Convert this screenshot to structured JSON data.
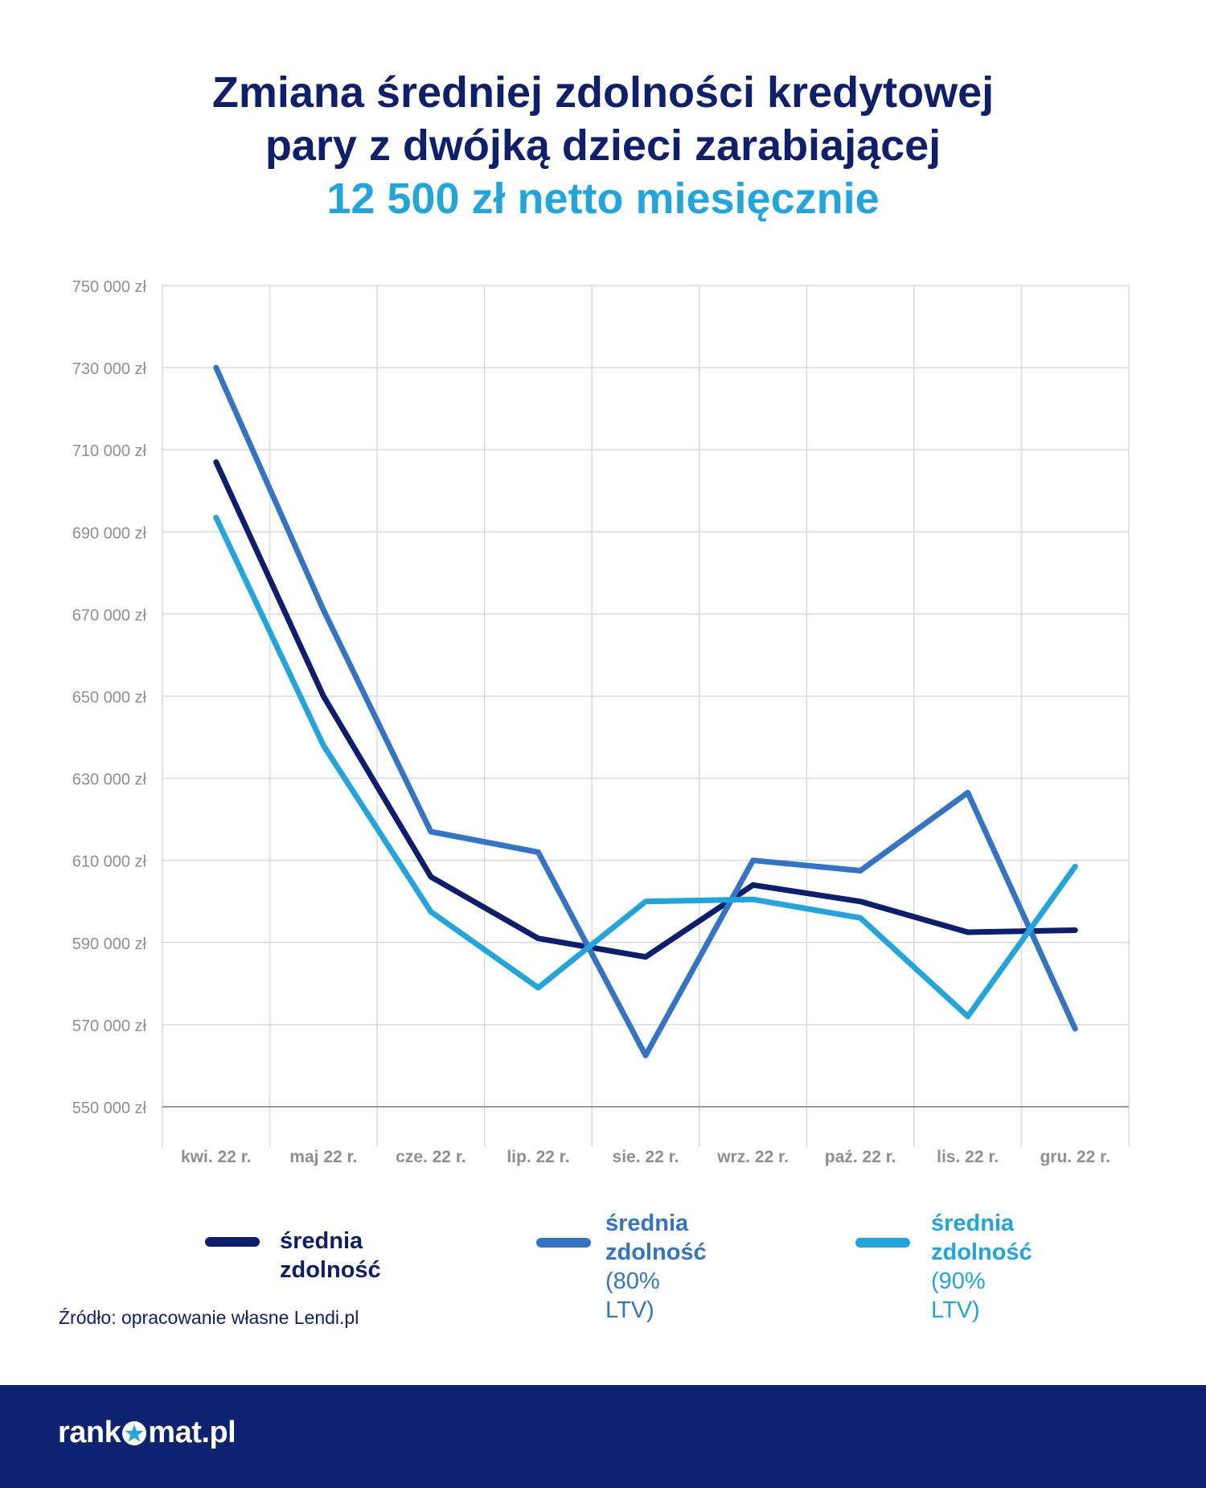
{
  "title": {
    "line1": "Zmiana średniej zdolności kredytowej",
    "line2": "pary z dwójką dzieci zarabiającej",
    "line3": "12 500 zł netto miesięcznie"
  },
  "colors": {
    "title_dark": "#0d1f6d",
    "title_accent": "#22a4dd",
    "footer_bg": "#0e2272",
    "grid": "#d9d9d9",
    "axis": "#9a9a9a",
    "tick_text": "#8f8f8f",
    "source_text": "#0d1f6d"
  },
  "chart_data": {
    "type": "line",
    "categories": [
      "kwi. 22 r.",
      "maj 22 r.",
      "cze. 22  r.",
      "lip. 22 r.",
      "sie. 22 r.",
      "wrz. 22 r.",
      "paź. 22 r.",
      "lis. 22 r.",
      "gru. 22 r."
    ],
    "y_ticks": [
      550000,
      570000,
      590000,
      610000,
      630000,
      650000,
      670000,
      690000,
      710000,
      730000,
      750000
    ],
    "y_tick_labels": [
      "550 000 zł",
      "570 000 zł",
      "590 000 zł",
      "610 000 zł",
      "630 000 zł",
      "650 000 zł",
      "670 000 zł",
      "690 000 zł",
      "710 000 zł",
      "730 000 zł",
      "750 000 zł"
    ],
    "ylim": [
      550000,
      750000
    ],
    "grid": true,
    "legend_position": "bottom",
    "series": [
      {
        "name": "średnia zdolność",
        "name_extra": "",
        "color": "#0e1e6f",
        "values": [
          707000,
          650000,
          606000,
          591000,
          586500,
          604000,
          600000,
          592500,
          593000
        ]
      },
      {
        "name": "średnia zdolność",
        "name_extra": "(80% LTV)",
        "color": "#3474c5",
        "values": [
          730000,
          671000,
          617000,
          612000,
          562500,
          610000,
          607500,
          626500,
          569000
        ]
      },
      {
        "name": "średnia zdolność",
        "name_extra": "(90% LTV)",
        "color": "#22a4dd",
        "values": [
          693500,
          638000,
          597500,
          579000,
          600000,
          600500,
          596000,
          572000,
          608500
        ]
      }
    ]
  },
  "source": "Źródło: opracowanie własne Lendi.pl",
  "footer": {
    "logo_part1": "rank",
    "logo_part2": "mat.pl"
  }
}
